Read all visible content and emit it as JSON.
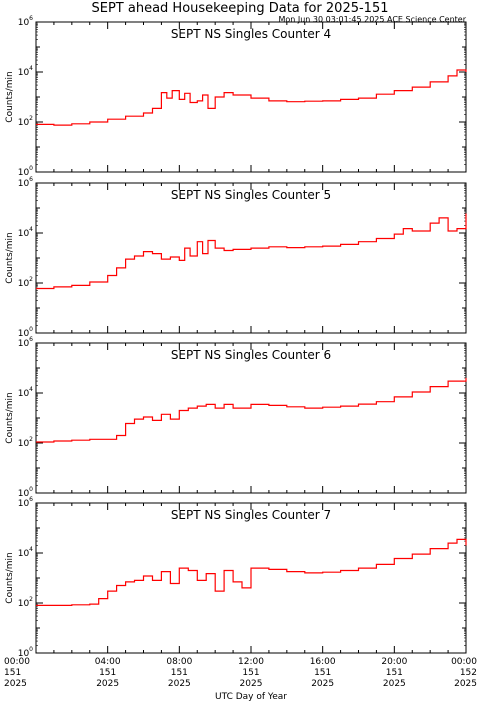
{
  "title": "SEPT ahead Housekeeping Data for 2025-151",
  "timestamp": "Mon Jun 30 03:01:45 2025 ACE Science Center",
  "x_axis_label": "UTC Day of Year",
  "y_axis_label": "Counts/min",
  "y_tick_labels": [
    {
      "base": "10",
      "exp": "0"
    },
    {
      "base": "10",
      "exp": "2"
    },
    {
      "base": "10",
      "exp": "4"
    },
    {
      "base": "10",
      "exp": "6"
    }
  ],
  "x_tick_labels": [
    {
      "time": "00:00",
      "day": "151",
      "year": "2025"
    },
    {
      "time": "04:00",
      "day": "151",
      "year": "2025"
    },
    {
      "time": "08:00",
      "day": "151",
      "year": "2025"
    },
    {
      "time": "12:00",
      "day": "151",
      "year": "2025"
    },
    {
      "time": "16:00",
      "day": "151",
      "year": "2025"
    },
    {
      "time": "20:00",
      "day": "151",
      "year": "2025"
    },
    {
      "time": "00:00",
      "day": "152",
      "year": "2025"
    }
  ],
  "colors": {
    "line": "#ff0000",
    "panel_title": "#0000ff",
    "axes": "#000000"
  },
  "chart_data": [
    {
      "type": "line",
      "title": "SEPT NS Singles Counter 4",
      "xlabel": "UTC Day of Year",
      "ylabel": "Counts/min",
      "x_unit": "hours since 2025-151 00:00 UTC",
      "xlim": [
        0,
        24
      ],
      "ylim": [
        1,
        1000000
      ],
      "yscale": "log",
      "x": [
        0,
        1,
        2,
        3,
        4,
        5,
        6,
        6.5,
        7,
        7.3,
        7.6,
        8,
        8.3,
        8.6,
        9,
        9.3,
        9.6,
        10,
        10.5,
        11,
        12,
        13,
        14,
        15,
        16,
        17,
        18,
        19,
        20,
        21,
        22,
        23,
        23.5,
        24
      ],
      "series": [
        {
          "values": [
            80,
            75,
            85,
            100,
            130,
            170,
            230,
            350,
            1500,
            900,
            1800,
            800,
            1400,
            600,
            700,
            1200,
            350,
            1000,
            1500,
            1200,
            900,
            700,
            650,
            680,
            700,
            800,
            900,
            1300,
            1800,
            2500,
            4000,
            7000,
            12000,
            10000
          ]
        }
      ]
    },
    {
      "type": "line",
      "title": "SEPT NS Singles Counter 5",
      "xlabel": "UTC Day of Year",
      "ylabel": "Counts/min",
      "x_unit": "hours since 2025-151 00:00 UTC",
      "xlim": [
        0,
        24
      ],
      "ylim": [
        1,
        1000000
      ],
      "yscale": "log",
      "x": [
        0,
        1,
        2,
        3,
        4,
        4.5,
        5,
        5.5,
        6,
        6.5,
        7,
        7.5,
        8,
        8.3,
        8.6,
        9,
        9.3,
        9.6,
        10,
        10.5,
        11,
        12,
        13,
        14,
        15,
        16,
        17,
        18,
        19,
        20,
        20.5,
        21,
        22,
        22.5,
        23,
        23.5,
        24
      ],
      "series": [
        {
          "values": [
            60,
            70,
            80,
            110,
            200,
            400,
            900,
            1200,
            1800,
            1500,
            900,
            1100,
            800,
            2500,
            1200,
            4500,
            1500,
            5000,
            2500,
            2000,
            2200,
            2500,
            2800,
            2600,
            2800,
            3000,
            3500,
            4500,
            6000,
            9000,
            15000,
            12000,
            25000,
            40000,
            12000,
            15000,
            60000
          ]
        }
      ]
    },
    {
      "type": "line",
      "title": "SEPT NS Singles Counter 6",
      "xlabel": "UTC Day of Year",
      "ylabel": "Counts/min",
      "x_unit": "hours since 2025-151 00:00 UTC",
      "xlim": [
        0,
        24
      ],
      "ylim": [
        1,
        1000000
      ],
      "yscale": "log",
      "x": [
        0,
        1,
        2,
        3,
        4,
        4.5,
        5,
        5.5,
        6,
        6.5,
        7,
        7.5,
        8,
        8.5,
        9,
        9.5,
        10,
        10.5,
        11,
        12,
        13,
        14,
        15,
        16,
        17,
        18,
        19,
        20,
        21,
        22,
        23,
        24
      ],
      "series": [
        {
          "values": [
            110,
            120,
            130,
            140,
            140,
            200,
            600,
            900,
            1100,
            800,
            1400,
            900,
            2000,
            2500,
            3000,
            3500,
            2500,
            3500,
            2500,
            3500,
            3200,
            2800,
            2500,
            2700,
            3000,
            3600,
            4500,
            7000,
            11000,
            18000,
            30000,
            40000
          ]
        }
      ]
    },
    {
      "type": "line",
      "title": "SEPT NS Singles Counter 7",
      "xlabel": "UTC Day of Year",
      "ylabel": "Counts/min",
      "x_unit": "hours since 2025-151 00:00 UTC",
      "xlim": [
        0,
        24
      ],
      "ylim": [
        1,
        1000000
      ],
      "yscale": "log",
      "x": [
        0,
        1,
        2,
        3,
        3.5,
        4,
        4.5,
        5,
        5.5,
        6,
        6.5,
        7,
        7.5,
        8,
        8.5,
        9,
        9.5,
        10,
        10.5,
        11,
        11.5,
        12,
        13,
        14,
        15,
        16,
        17,
        18,
        19,
        20,
        21,
        22,
        23,
        23.5,
        24
      ],
      "series": [
        {
          "values": [
            80,
            80,
            85,
            90,
            150,
            300,
            500,
            700,
            800,
            1200,
            800,
            1800,
            600,
            2500,
            2000,
            800,
            1500,
            300,
            2000,
            700,
            400,
            2500,
            2200,
            1800,
            1600,
            1700,
            2000,
            2500,
            3500,
            6000,
            9000,
            15000,
            25000,
            35000,
            20000
          ]
        }
      ]
    }
  ]
}
